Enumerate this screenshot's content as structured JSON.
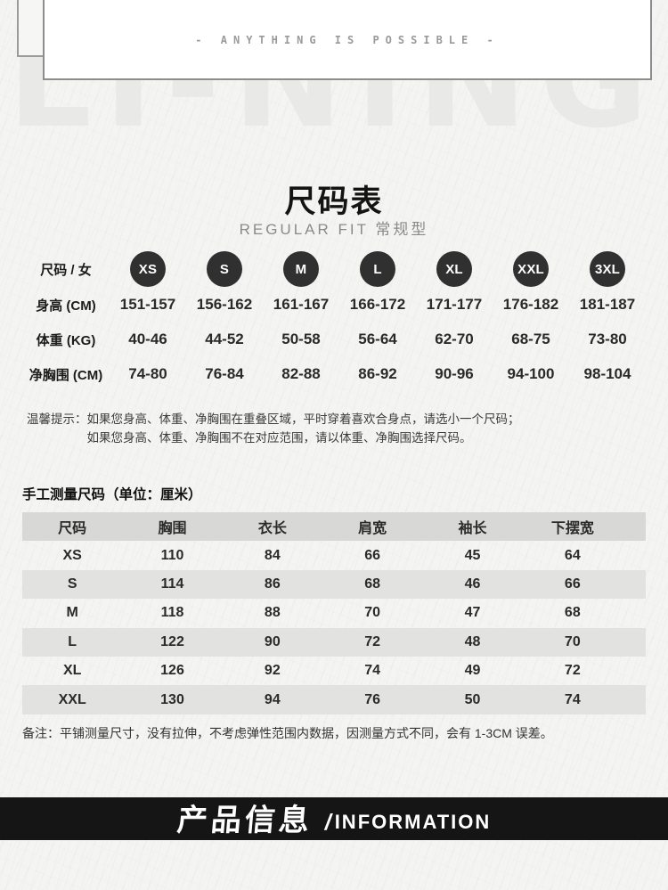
{
  "colors": {
    "page_bg": "#f4f4f2",
    "badge_bg": "#303030",
    "table_header_bg": "#d8d8d7",
    "table_alt_row_bg": "#e2e2e1",
    "banner_bg": "#151515",
    "watermark": "#e9e9e7"
  },
  "top": {
    "slogan": "-  ANYTHING  IS  POSSIBLE  -",
    "watermark": "LI-NING"
  },
  "size_chart": {
    "title": "尺码表",
    "subtitle": "REGULAR FIT 常规型",
    "header_label": "尺码 / 女",
    "sizes": [
      "XS",
      "S",
      "M",
      "L",
      "XL",
      "XXL",
      "3XL"
    ],
    "rows": [
      {
        "label": "身高 (CM)",
        "values": [
          "151-157",
          "156-162",
          "161-167",
          "166-172",
          "171-177",
          "176-182",
          "181-187"
        ]
      },
      {
        "label": "体重 (KG)",
        "values": [
          "40-46",
          "44-52",
          "50-58",
          "56-64",
          "62-70",
          "68-75",
          "73-80"
        ]
      },
      {
        "label": "净胸围 (CM)",
        "values": [
          "74-80",
          "76-84",
          "82-88",
          "86-92",
          "90-96",
          "94-100",
          "98-104"
        ]
      }
    ],
    "tip_label": "温馨提示：",
    "tip_line1": "如果您身高、体重、净胸围在重叠区域，平时穿着喜欢合身点，请选小一个尺码；",
    "tip_line2": "如果您身高、体重、净胸围不在对应范围，请以体重、净胸围选择尺码。"
  },
  "measure_table": {
    "title": "手工测量尺码（单位：厘米）",
    "headers": [
      "尺码",
      "胸围",
      "衣长",
      "肩宽",
      "袖长",
      "下摆宽"
    ],
    "rows": [
      [
        "XS",
        "110",
        "84",
        "66",
        "45",
        "64"
      ],
      [
        "S",
        "114",
        "86",
        "68",
        "46",
        "66"
      ],
      [
        "M",
        "118",
        "88",
        "70",
        "47",
        "68"
      ],
      [
        "L",
        "122",
        "90",
        "72",
        "48",
        "70"
      ],
      [
        "XL",
        "126",
        "92",
        "74",
        "49",
        "72"
      ],
      [
        "XXL",
        "130",
        "94",
        "76",
        "50",
        "74"
      ]
    ],
    "note": "备注：平铺测量尺寸，没有拉伸，不考虑弹性范围内数据，因测量方式不同，会有 1-3CM 误差。"
  },
  "info_banner": {
    "title_cn": "产品信息",
    "divider": "/",
    "title_en": "INFORMATION"
  },
  "chart_data": {
    "type": "table",
    "title": "尺码表 REGULAR FIT 常规型",
    "tables": [
      {
        "name": "body-size-chart",
        "columns": [
          "XS",
          "S",
          "M",
          "L",
          "XL",
          "XXL",
          "3XL"
        ],
        "rows": [
          {
            "label": "身高 (CM)",
            "values": [
              "151-157",
              "156-162",
              "161-167",
              "166-172",
              "171-177",
              "176-182",
              "181-187"
            ]
          },
          {
            "label": "体重 (KG)",
            "values": [
              "40-46",
              "44-52",
              "50-58",
              "56-64",
              "62-70",
              "68-75",
              "73-80"
            ]
          },
          {
            "label": "净胸围 (CM)",
            "values": [
              "74-80",
              "76-84",
              "82-88",
              "86-92",
              "90-96",
              "94-100",
              "98-104"
            ]
          }
        ]
      },
      {
        "name": "garment-measurements-cm",
        "columns": [
          "尺码",
          "胸围",
          "衣长",
          "肩宽",
          "袖长",
          "下摆宽"
        ],
        "rows": [
          [
            "XS",
            110,
            84,
            66,
            45,
            64
          ],
          [
            "S",
            114,
            86,
            68,
            46,
            66
          ],
          [
            "M",
            118,
            88,
            70,
            47,
            68
          ],
          [
            "L",
            122,
            90,
            72,
            48,
            70
          ],
          [
            "XL",
            126,
            92,
            74,
            49,
            72
          ],
          [
            "XXL",
            130,
            94,
            76,
            50,
            74
          ]
        ]
      }
    ]
  }
}
